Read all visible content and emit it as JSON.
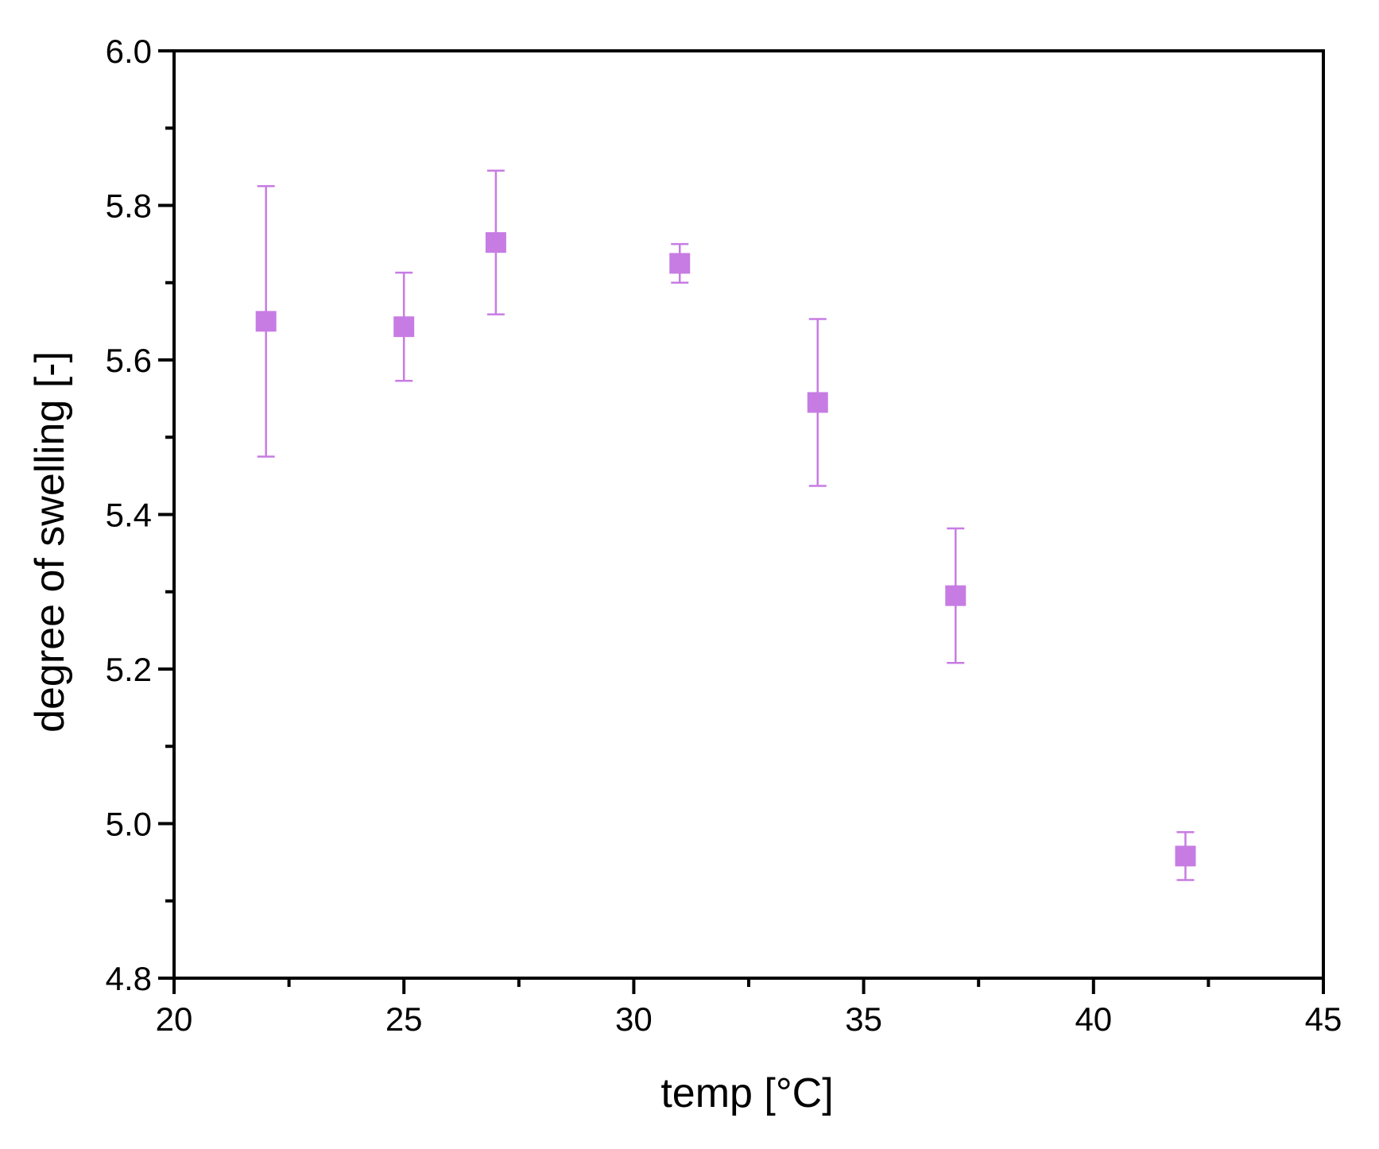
{
  "chart_data": {
    "type": "scatter",
    "title": "",
    "xlabel": "temp [°C]",
    "ylabel": "degree of swelling [-]",
    "xlim": [
      20,
      45
    ],
    "ylim": [
      4.8,
      6.0
    ],
    "x_ticks": [
      20,
      25,
      30,
      35,
      40,
      45
    ],
    "x_tick_labels": [
      "20",
      "25",
      "30",
      "35",
      "40",
      "45"
    ],
    "y_ticks": [
      4.8,
      5.0,
      5.2,
      5.4,
      5.6,
      5.8,
      6.0
    ],
    "y_tick_labels": [
      "4.8",
      "5.0",
      "5.2",
      "5.4",
      "5.6",
      "5.8",
      "6.0"
    ],
    "grid": false,
    "legend": "none",
    "marker": "square",
    "color": "#C77CE3",
    "series": [
      {
        "x": [
          22,
          25,
          27,
          31,
          34,
          37,
          42
        ],
        "y": [
          5.65,
          5.643,
          5.752,
          5.725,
          5.545,
          5.295,
          4.958
        ],
        "error": [
          0.175,
          0.07,
          0.093,
          0.025,
          0.108,
          0.087,
          0.031
        ]
      }
    ]
  }
}
